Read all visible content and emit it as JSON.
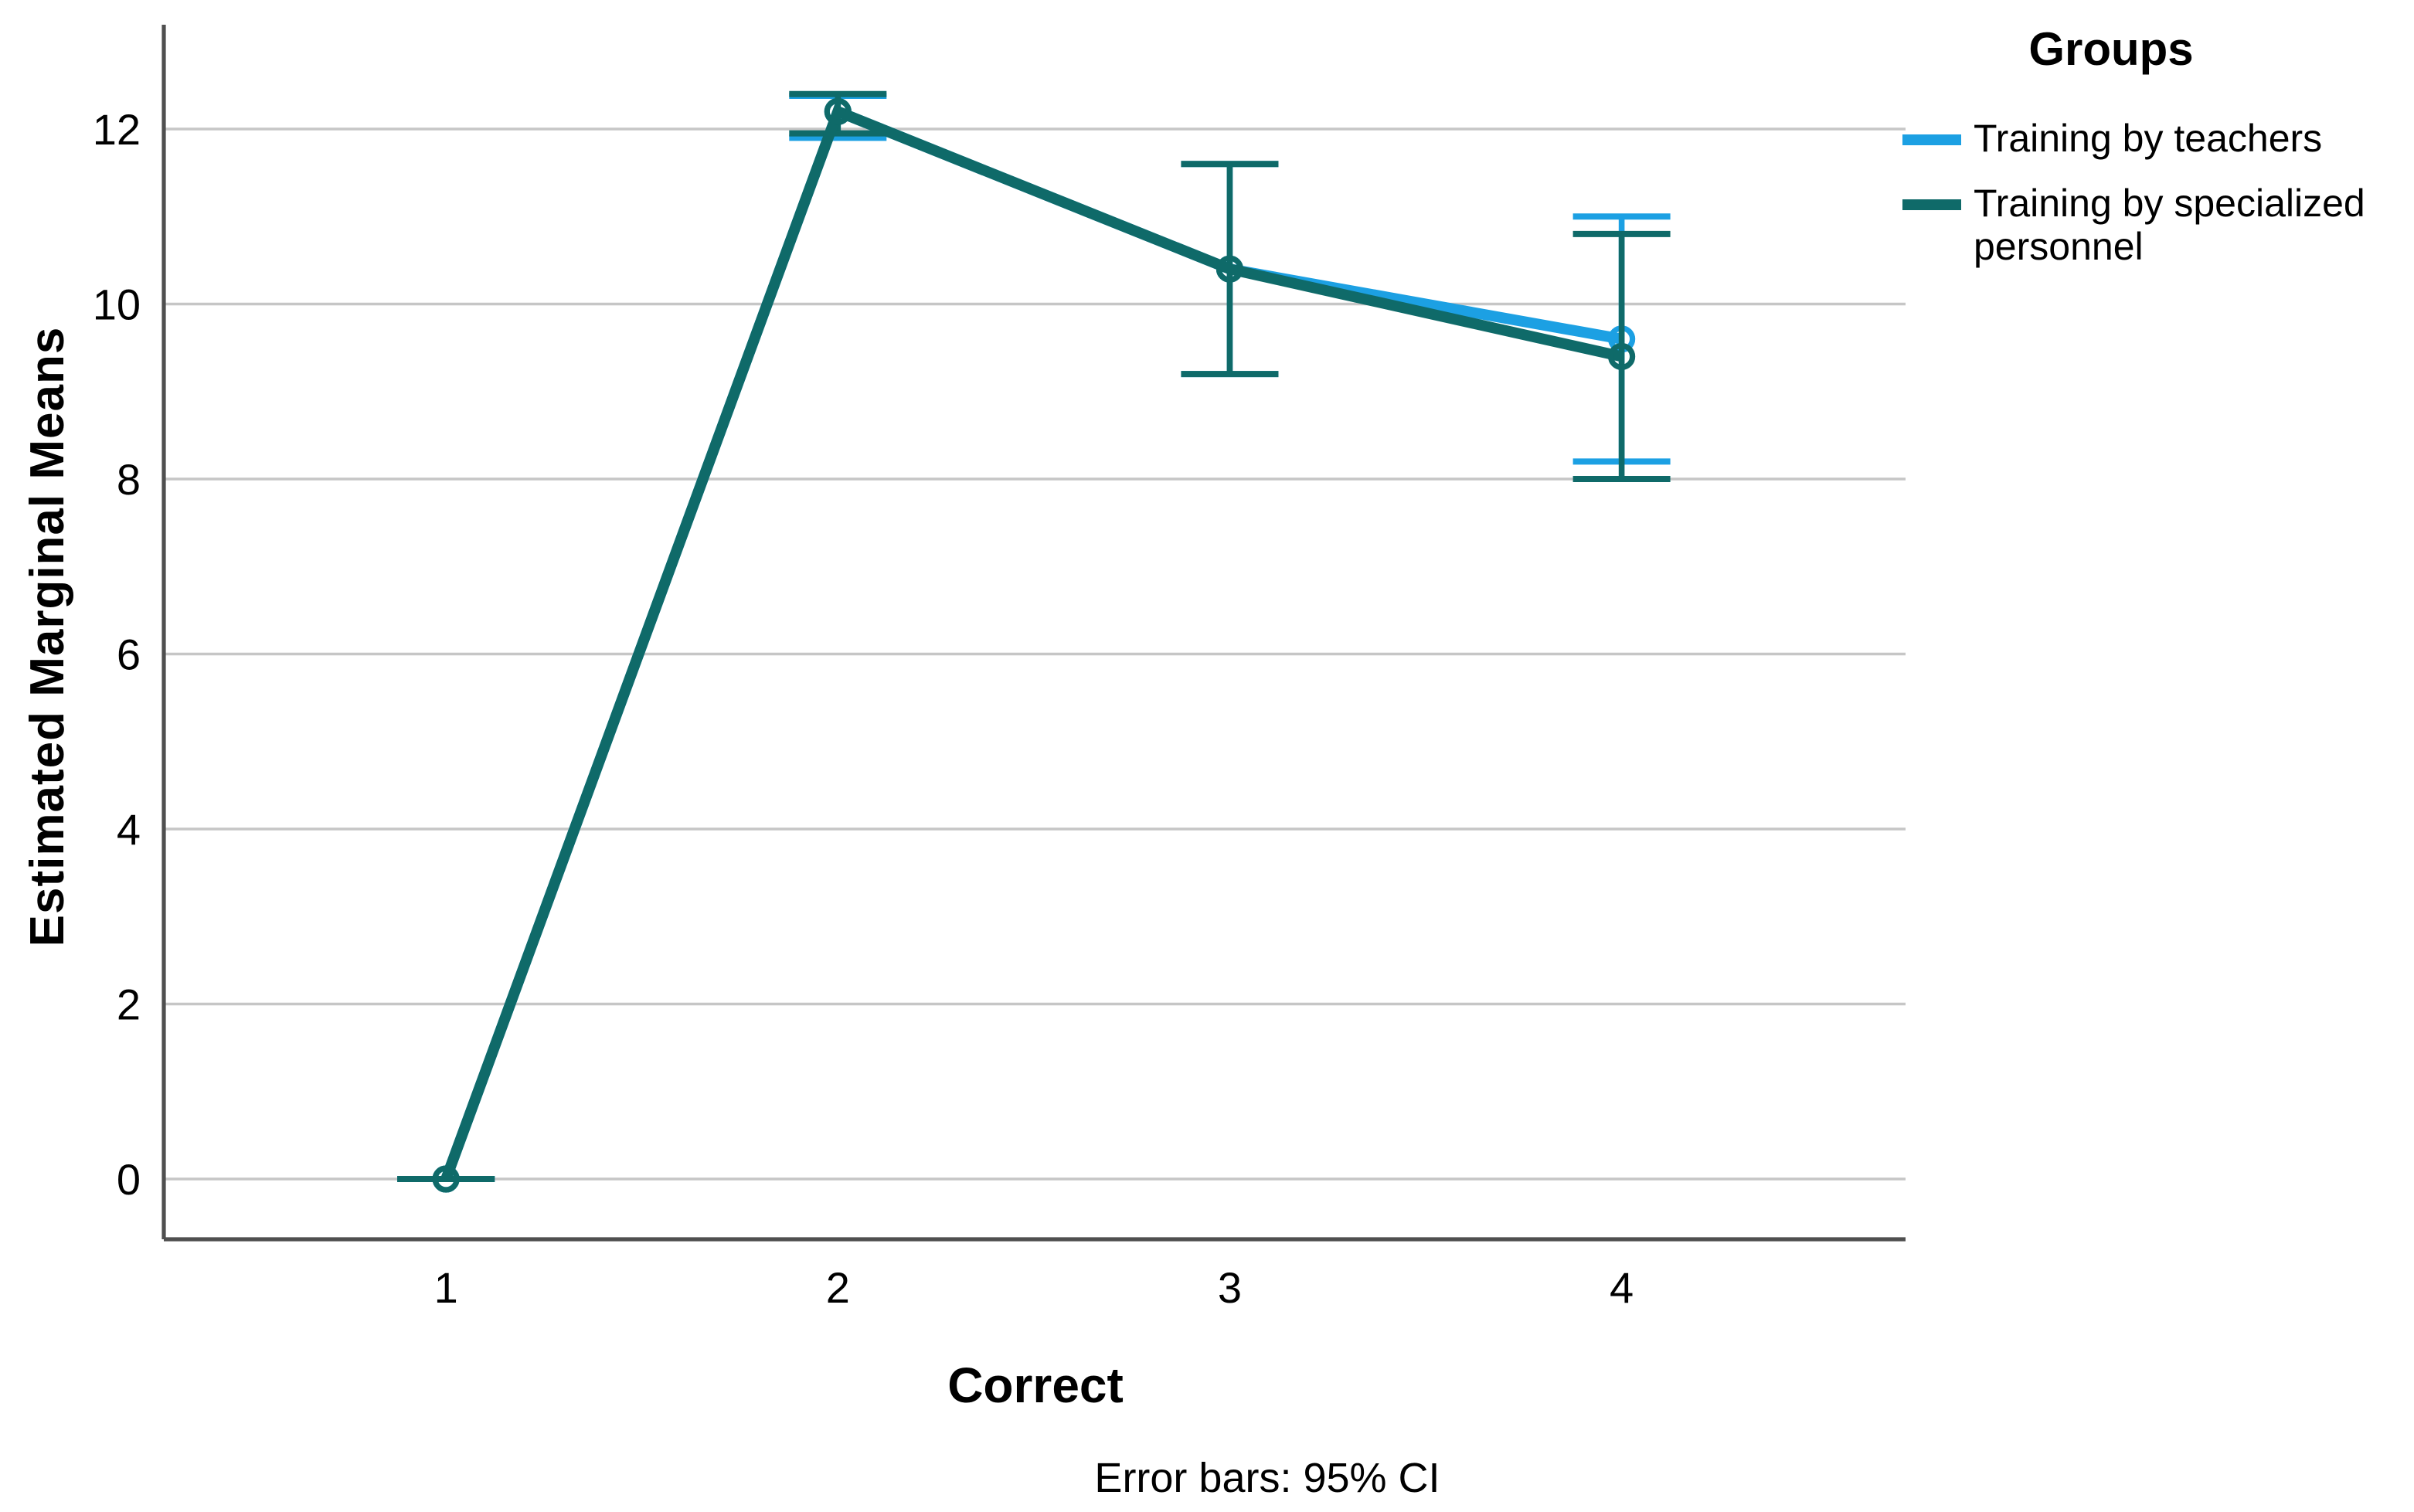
{
  "figure": {
    "background": "#ffffff",
    "axis_color": "#4f4f4f",
    "gridline_color": "#c6c6c6"
  },
  "y_axis_title": "Estimated Marginal Means",
  "x_axis_title": "Correct",
  "footnote": "Error bars: 95% CI",
  "legend": {
    "title": "Groups",
    "entries": [
      {
        "label": "Training by teachers",
        "color": "#1CA0E3"
      },
      {
        "label": "Training by specialized personnel",
        "color": "#0F6A69"
      }
    ]
  },
  "chart_data": {
    "type": "line",
    "title": "",
    "xlabel": "Correct",
    "ylabel": "Estimated Marginal Means",
    "categories": [
      "1",
      "2",
      "3",
      "4"
    ],
    "yticks": [
      0,
      2,
      4,
      6,
      8,
      10,
      12
    ],
    "ylim": [
      -0.7,
      13.2
    ],
    "grid": "horizontal",
    "legend_position": "right",
    "error_bars": "95% CI",
    "marker": "open-circle",
    "series": [
      {
        "name": "Training by teachers",
        "color": "#1CA0E3",
        "values": [
          0.0,
          12.2,
          10.4,
          9.6
        ],
        "ci_low": [
          0.0,
          11.9,
          9.2,
          8.2
        ],
        "ci_high": [
          0.0,
          12.38,
          11.6,
          11.0
        ]
      },
      {
        "name": "Training by specialized personnel",
        "color": "#0F6A69",
        "values": [
          0.0,
          12.2,
          10.4,
          9.4
        ],
        "ci_low": [
          0.0,
          11.95,
          9.2,
          8.0
        ],
        "ci_high": [
          0.0,
          12.4,
          11.6,
          10.8
        ]
      }
    ]
  }
}
